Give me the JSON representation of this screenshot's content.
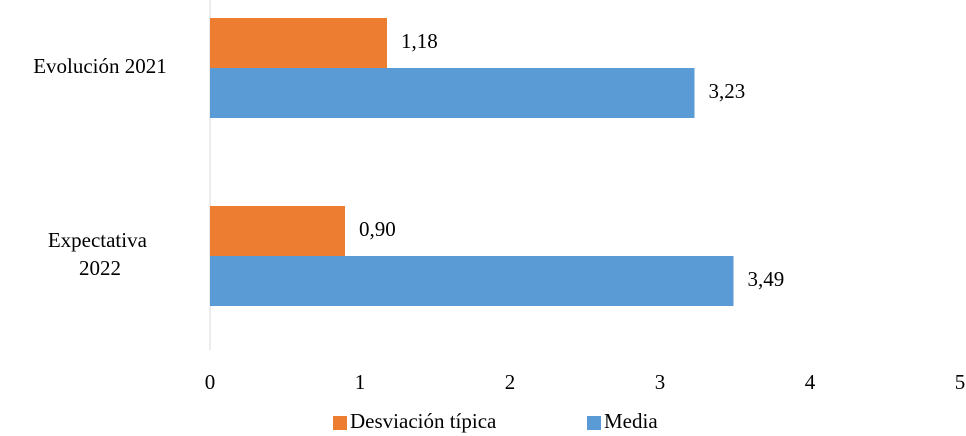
{
  "chart_data": {
    "type": "hbar",
    "categories": [
      "Evolución 2021",
      "Expectativa 2022"
    ],
    "series": [
      {
        "name": "Desviación típica",
        "color": "#ED7D31",
        "values": [
          1.18,
          0.9
        ],
        "value_labels": [
          "1,18",
          "0,90"
        ]
      },
      {
        "name": "Media",
        "color": "#5B9BD5",
        "values": [
          3.23,
          3.49
        ],
        "value_labels": [
          "3,23",
          "3,49"
        ]
      }
    ],
    "xlim": [
      0,
      5
    ],
    "xticks": [
      0,
      1,
      2,
      3,
      4,
      5
    ],
    "grid": false,
    "legend": "bottom"
  }
}
